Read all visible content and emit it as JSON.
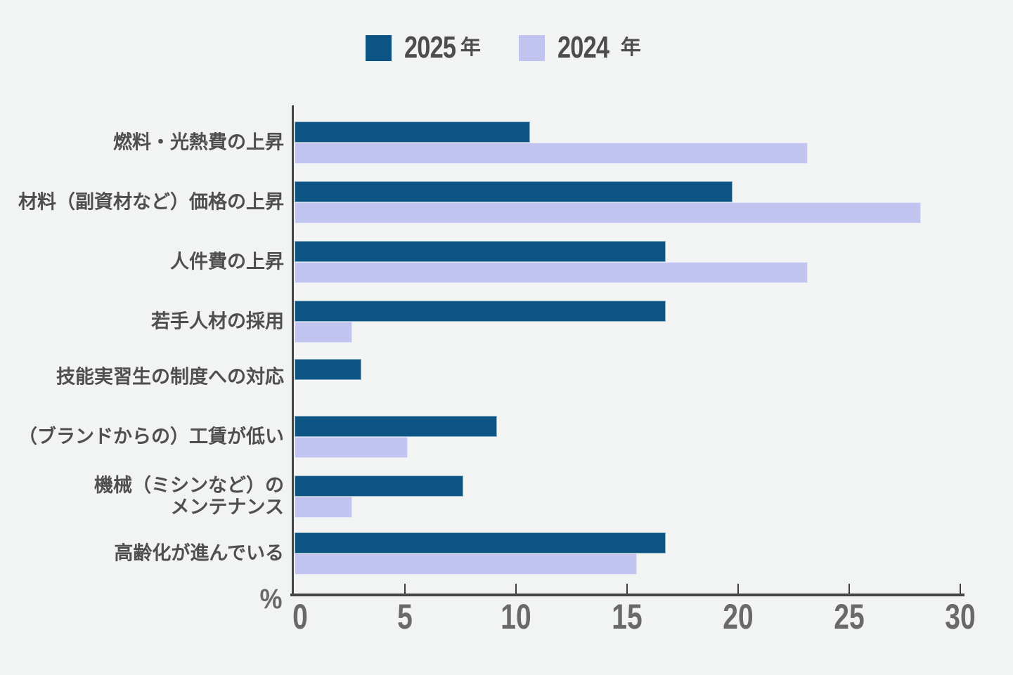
{
  "page": {
    "background_color": "#f2f3f3"
  },
  "legend": {
    "items": [
      {
        "key": "2025",
        "year": "2025",
        "suffix": "年",
        "color": "#0b5483"
      },
      {
        "key": "2024",
        "year": "2024",
        "suffix": "年",
        "color": "#c0c4ee"
      }
    ]
  },
  "axis": {
    "unit_label": "%"
  },
  "chart_data": {
    "type": "bar",
    "orientation": "horizontal",
    "title": "",
    "categories": [
      "燃料・光熱費の上昇",
      "材料（副資材など）価格の上昇",
      "人件費の上昇",
      "若手人材の採用",
      "技能実習生の制度への対応",
      "（ブランドからの）工賃が低い",
      "機械（ミシンなど）の\nメンテナンス",
      "高齢化が進んでいる"
    ],
    "series": [
      {
        "key": "2025",
        "name": "2025年",
        "color": "#0b5483",
        "values": [
          10.6,
          19.7,
          16.7,
          16.7,
          3.0,
          9.1,
          7.6,
          16.7
        ]
      },
      {
        "key": "2024",
        "name": "2024年",
        "color": "#c0c4ee",
        "values": [
          23.1,
          28.2,
          23.1,
          2.6,
          0,
          5.1,
          2.6,
          15.4
        ]
      }
    ],
    "xlabel": "%",
    "xlim": [
      0,
      30
    ],
    "xticks": [
      0,
      5,
      10,
      15,
      20,
      25,
      30
    ],
    "grid": false,
    "legend_position": "top"
  }
}
